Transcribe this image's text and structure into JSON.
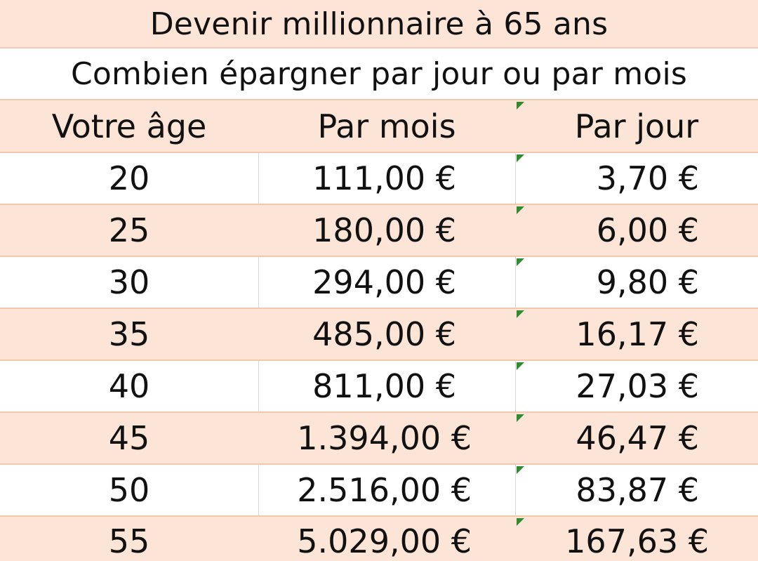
{
  "title": "Devenir millionnaire à 65 ans",
  "subtitle": "Combien épargner par jour ou par mois",
  "columns": [
    "Votre âge",
    "Par mois",
    "Par jour"
  ],
  "rows": [
    {
      "age": "20",
      "month": "111,00 €",
      "day": "3,70 €"
    },
    {
      "age": "25",
      "month": "180,00 €",
      "day": "6,00 €"
    },
    {
      "age": "30",
      "month": "294,00 €",
      "day": "9,80 €"
    },
    {
      "age": "35",
      "month": "485,00 €",
      "day": "16,17 €"
    },
    {
      "age": "40",
      "month": "811,00 €",
      "day": "27,03 €"
    },
    {
      "age": "45",
      "month": "1.394,00 €",
      "day": "46,47 €"
    },
    {
      "age": "50",
      "month": "2.516,00 €",
      "day": "83,87 €"
    },
    {
      "age": "55",
      "month": "5.029,00 €",
      "day": "167,63 €"
    }
  ],
  "colors": {
    "band": "#fce4d6",
    "plain": "#ffffff",
    "gridline": "#d8d8d8",
    "comment_marker": "#2e8b2e"
  }
}
